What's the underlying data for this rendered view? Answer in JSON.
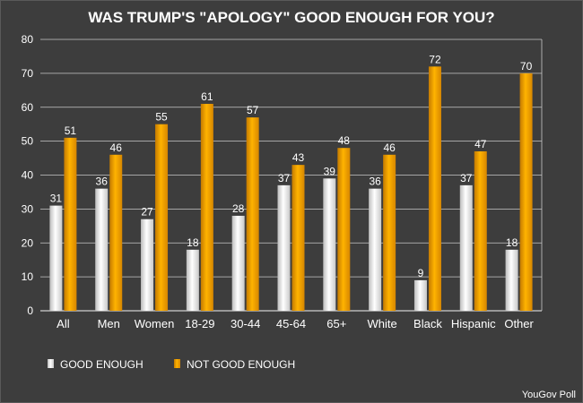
{
  "chart_data": {
    "type": "bar",
    "title": "WAS TRUMP'S \"APOLOGY\" GOOD ENOUGH FOR YOU?",
    "categories": [
      "All",
      "Men",
      "Women",
      "18-29",
      "30-44",
      "45-64",
      "65+",
      "White",
      "Black",
      "Hispanic",
      "Other"
    ],
    "series": [
      {
        "name": "GOOD ENOUGH",
        "color": "#e8e8e8",
        "values": [
          31,
          36,
          27,
          18,
          28,
          37,
          39,
          36,
          9,
          37,
          18
        ]
      },
      {
        "name": "NOT GOOD ENOUGH",
        "color": "#f0a000",
        "values": [
          51,
          46,
          55,
          61,
          57,
          43,
          48,
          46,
          72,
          47,
          70
        ]
      }
    ],
    "ylim": [
      0,
      80
    ],
    "yticks": [
      0,
      10,
      20,
      30,
      40,
      50,
      60,
      70,
      80
    ],
    "grid": true,
    "legend": "bottom-left",
    "xlabel": "",
    "ylabel": ""
  },
  "source": "YouGov Poll"
}
